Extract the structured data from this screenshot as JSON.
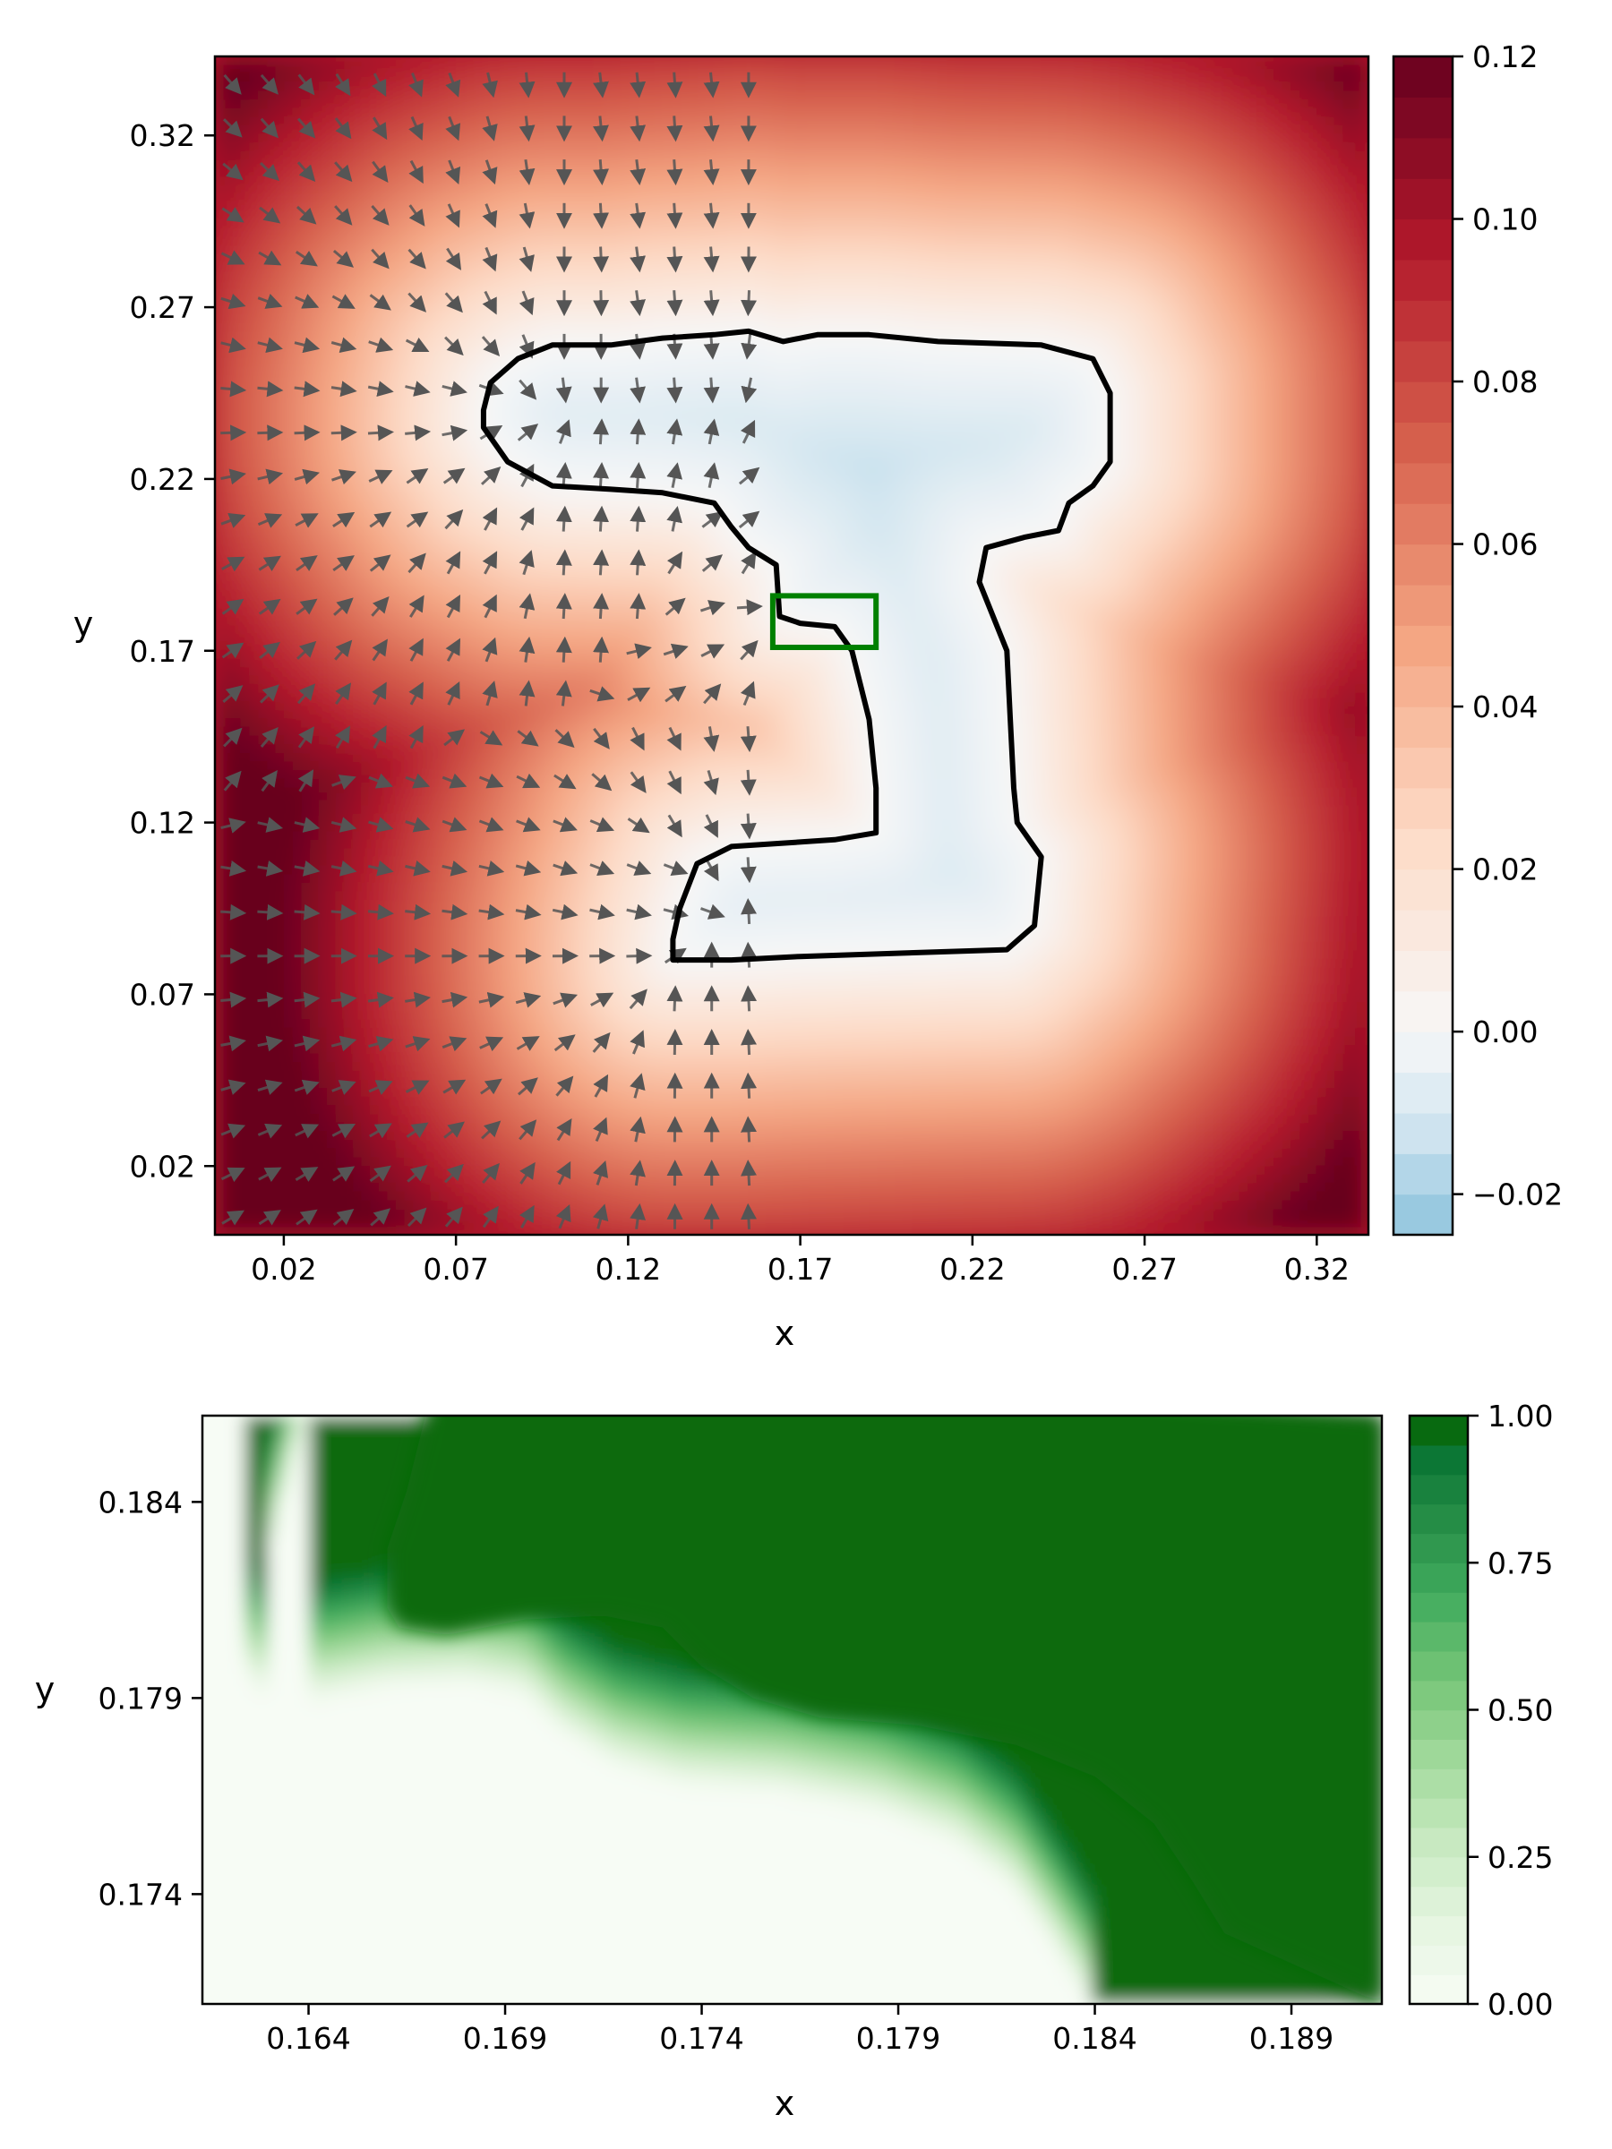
{
  "chart_data": [
    {
      "type": "heatmap",
      "subtype": "filled-contour with quiver overlay",
      "xlabel": "x",
      "ylabel": "y",
      "x_ticks": [
        "0.02",
        "0.07",
        "0.12",
        "0.17",
        "0.22",
        "0.27",
        "0.32"
      ],
      "y_ticks": [
        "0.02",
        "0.07",
        "0.12",
        "0.17",
        "0.22",
        "0.27",
        "0.32"
      ],
      "xlim": [
        0.0,
        0.335
      ],
      "ylim": [
        0.0,
        0.343
      ],
      "colormap": "RdBu_r",
      "colorbar": {
        "range": [
          -0.025,
          0.12
        ],
        "ticks": [
          "0.12",
          "0.10",
          "0.08",
          "0.06",
          "0.04",
          "0.02",
          "0.00",
          "−0.02"
        ],
        "tick_values": [
          0.12,
          0.1,
          0.08,
          0.06,
          0.04,
          0.02,
          0.0,
          -0.02
        ]
      },
      "contour_level": 0.0,
      "contour_color": "#000000",
      "shape_outline": [
        [
          0.098,
          0.259
        ],
        [
          0.115,
          0.259
        ],
        [
          0.13,
          0.261
        ],
        [
          0.145,
          0.262
        ],
        [
          0.155,
          0.263
        ],
        [
          0.165,
          0.26
        ],
        [
          0.175,
          0.262
        ],
        [
          0.19,
          0.262
        ],
        [
          0.21,
          0.26
        ],
        [
          0.24,
          0.259
        ],
        [
          0.255,
          0.255
        ],
        [
          0.26,
          0.245
        ],
        [
          0.26,
          0.225
        ],
        [
          0.255,
          0.218
        ],
        [
          0.248,
          0.213
        ],
        [
          0.245,
          0.205
        ],
        [
          0.235,
          0.203
        ],
        [
          0.224,
          0.2
        ],
        [
          0.222,
          0.19
        ],
        [
          0.23,
          0.17
        ],
        [
          0.231,
          0.15
        ],
        [
          0.232,
          0.13
        ],
        [
          0.233,
          0.12
        ],
        [
          0.24,
          0.11
        ],
        [
          0.238,
          0.09
        ],
        [
          0.23,
          0.083
        ],
        [
          0.2,
          0.082
        ],
        [
          0.17,
          0.081
        ],
        [
          0.15,
          0.08
        ],
        [
          0.133,
          0.08
        ],
        [
          0.133,
          0.086
        ],
        [
          0.135,
          0.095
        ],
        [
          0.14,
          0.108
        ],
        [
          0.15,
          0.113
        ],
        [
          0.165,
          0.114
        ],
        [
          0.18,
          0.115
        ],
        [
          0.192,
          0.117
        ],
        [
          0.192,
          0.13
        ],
        [
          0.19,
          0.15
        ],
        [
          0.185,
          0.17
        ],
        [
          0.18,
          0.177
        ],
        [
          0.17,
          0.178
        ],
        [
          0.164,
          0.18
        ],
        [
          0.163,
          0.195
        ],
        [
          0.155,
          0.2
        ],
        [
          0.15,
          0.206
        ],
        [
          0.145,
          0.213
        ],
        [
          0.13,
          0.216
        ],
        [
          0.115,
          0.217
        ],
        [
          0.098,
          0.218
        ],
        [
          0.085,
          0.225
        ],
        [
          0.078,
          0.235
        ],
        [
          0.078,
          0.24
        ],
        [
          0.08,
          0.248
        ],
        [
          0.088,
          0.255
        ]
      ],
      "quiver_region": {
        "x": [
          0.005,
          0.155
        ],
        "y": [
          0.005,
          0.335
        ]
      },
      "zoom_box": {
        "x": [
          0.162,
          0.192
        ],
        "y": [
          0.171,
          0.186
        ],
        "color": "#008000"
      }
    },
    {
      "type": "heatmap",
      "subtype": "filled-contour (zoomed)",
      "xlabel": "x",
      "ylabel": "y",
      "x_ticks": [
        "0.164",
        "0.169",
        "0.174",
        "0.179",
        "0.184",
        "0.189"
      ],
      "y_ticks": [
        "0.184",
        "0.179",
        "0.174"
      ],
      "xlim": [
        0.1613,
        0.1913
      ],
      "ylim": [
        0.1712,
        0.1862
      ],
      "colormap": "Greens",
      "colorbar": {
        "range": [
          0.0,
          1.0
        ],
        "ticks": [
          "1.00",
          "0.75",
          "0.50",
          "0.25",
          "0.00"
        ],
        "tick_values": [
          1.0,
          0.75,
          0.5,
          0.25,
          0.0
        ]
      },
      "boundary": [
        [
          0.164,
          0.1862
        ],
        [
          0.1635,
          0.1845
        ],
        [
          0.163,
          0.1825
        ],
        [
          0.1625,
          0.181
        ],
        [
          0.1625,
          0.1795
        ],
        [
          0.1628,
          0.179
        ],
        [
          0.164,
          0.1788
        ],
        [
          0.166,
          0.1792
        ],
        [
          0.168,
          0.1793
        ],
        [
          0.1695,
          0.179
        ],
        [
          0.1705,
          0.178
        ],
        [
          0.1718,
          0.1772
        ],
        [
          0.1735,
          0.1767
        ],
        [
          0.176,
          0.1765
        ],
        [
          0.1785,
          0.176
        ],
        [
          0.1805,
          0.1752
        ],
        [
          0.182,
          0.174
        ],
        [
          0.183,
          0.1725
        ],
        [
          0.1838,
          0.1712
        ]
      ]
    }
  ]
}
